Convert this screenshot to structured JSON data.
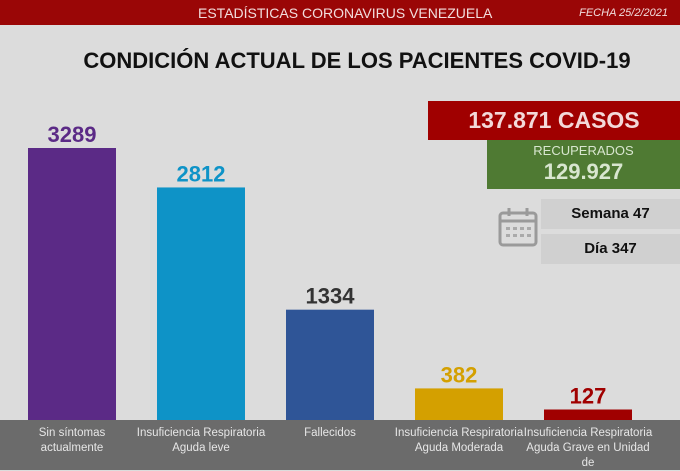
{
  "header": {
    "title": "ESTADÍSTICAS CORONAVIRUS VENEZUELA",
    "date": "FECHA 25/2/2021"
  },
  "summary": {
    "cases": "137.871 CASOS",
    "recovered_label": "RECUPERADOS",
    "recovered_value": "129.927",
    "week": "Semana 47",
    "day": "Día 347",
    "calendar_icon": "calendar-icon"
  },
  "chart_data": {
    "type": "bar",
    "title": "CONDICIÓN ACTUAL DE LOS PACIENTES COVID-19",
    "categories": [
      "Sin síntomas actualmente",
      "Insuficiencia Respiratoria Aguda leve",
      "Fallecidos",
      "Insuficiencia Respiratoria Aguda Moderada",
      "Insuficiencia Respiratoria Aguda Grave en Unidad de"
    ],
    "values": [
      3289,
      2812,
      1334,
      382,
      127
    ],
    "labels": [
      "3289",
      "2812",
      "1334",
      "382",
      "127"
    ],
    "colors": [
      "#5b2a86",
      "#0e93c7",
      "#2f5597",
      "#d4a000",
      "#a00000"
    ],
    "label_colors": [
      "#5b2a86",
      "#0e93c7",
      "#333333",
      "#d4a000",
      "#a00000"
    ],
    "ylim": [
      0,
      3289
    ],
    "grid": false
  }
}
